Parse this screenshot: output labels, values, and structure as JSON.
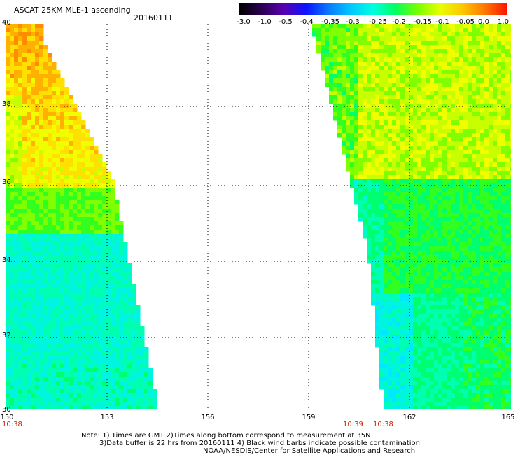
{
  "header": {
    "title": "ASCAT 25KM MLE-1 ascending",
    "date": "20160111"
  },
  "colorbar": {
    "labels": [
      "-3.0",
      "-1.0",
      "-0.5",
      "-0.4",
      "-0.35",
      "-0.3",
      "-0.25",
      "-0.2",
      "-0.15",
      "-0.1",
      "-0.05",
      "0.0",
      "1.0"
    ],
    "colors": [
      "#000000",
      "#2a0050",
      "#5a00b4",
      "#0a14ff",
      "#0a78ff",
      "#00c8ff",
      "#00ffe0",
      "#00ff60",
      "#78ff00",
      "#e6ff00",
      "#ffc800",
      "#ff7800",
      "#ff1400"
    ]
  },
  "map": {
    "lon_ticks": [
      "150",
      "153",
      "156",
      "159",
      "162",
      "165"
    ],
    "lat_ticks": [
      "30",
      "32",
      "34",
      "36",
      "38",
      "40"
    ],
    "lon_range": [
      150,
      165
    ],
    "lat_range": [
      30,
      40
    ],
    "grid": true,
    "passes": [
      {
        "time": "10:38"
      },
      {
        "time": "10:39"
      },
      {
        "time": "10:38"
      }
    ]
  },
  "footer": {
    "line1": "Note: 1) Times are GMT 2)Times along bottom correspond to measurement at 35N",
    "line2": "3)Data buffer is 22 hrs from 20160111 4) Black wind barbs indicate possible contamination",
    "line3": "NOAA/NESDIS/Center for Satellite Applications and Research"
  }
}
